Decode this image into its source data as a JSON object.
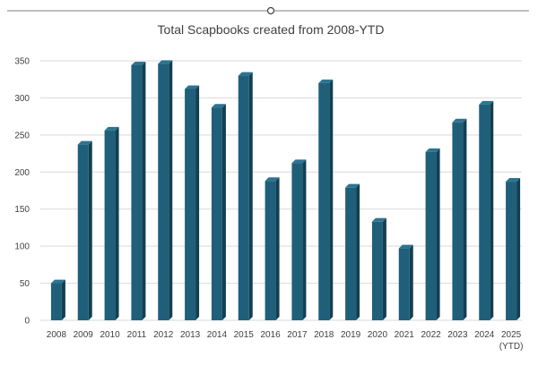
{
  "chart_data": {
    "type": "bar",
    "title": "Total Scapbooks created from 2008-YTD",
    "xlabel": "",
    "ylabel": "",
    "categories": [
      "2008",
      "2009",
      "2010",
      "2011",
      "2012",
      "2013",
      "2014",
      "2015",
      "2016",
      "2017",
      "2018",
      "2019",
      "2020",
      "2021",
      "2022",
      "2023",
      "2024",
      "2025"
    ],
    "category_sublabels": {
      "2025": "(YTD)"
    },
    "values": [
      50,
      237,
      256,
      344,
      346,
      312,
      287,
      330,
      188,
      212,
      320,
      179,
      133,
      97,
      227,
      267,
      291,
      187
    ],
    "ylim": [
      0,
      350
    ],
    "yticks": [
      0,
      50,
      100,
      150,
      200,
      250,
      300,
      350
    ],
    "grid": true,
    "legend": "none",
    "colors": {
      "bar_front": "#1f5f7a",
      "bar_side": "#123f52",
      "bar_top": "#2c7491",
      "gridline": "#d9d9d9",
      "text": "#404040",
      "frame_line": "#7f7f7f"
    }
  }
}
